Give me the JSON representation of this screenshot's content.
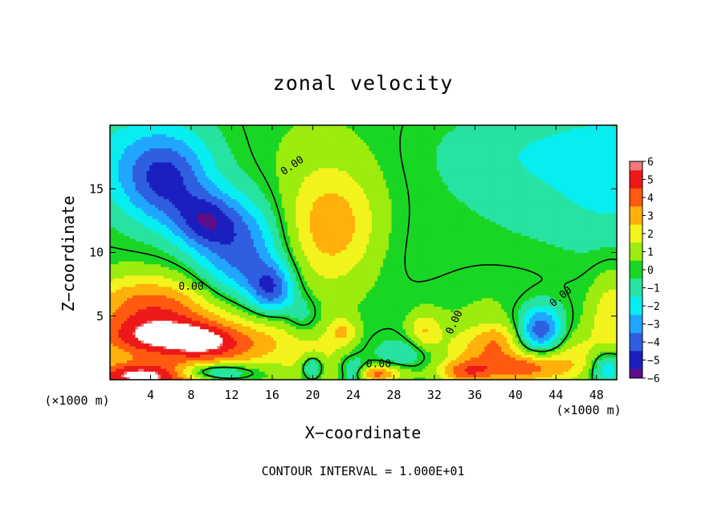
{
  "chart_data": {
    "type": "heatmap",
    "title": "zonal velocity",
    "xlabel": "X−coordinate",
    "ylabel": "Z−coordinate",
    "x_unit_label_left": "(×1000 m)",
    "x_unit_label_right": "(×1000 m)",
    "xlim": [
      0,
      50
    ],
    "ylim": [
      0,
      20
    ],
    "x_ticks": [
      4,
      8,
      12,
      16,
      20,
      24,
      28,
      32,
      36,
      40,
      44,
      48
    ],
    "y_ticks": [
      5,
      10,
      15
    ],
    "colorbar": {
      "range": [
        -6,
        6
      ],
      "tick_values": [
        6,
        5,
        4,
        3,
        2,
        1,
        0,
        -1,
        -2,
        -3,
        -4,
        -5,
        -6
      ],
      "tick_labels": [
        "6",
        "5",
        "4",
        "3",
        "2",
        "1",
        "0",
        "−1",
        "−2",
        "−3",
        "−4",
        "−5",
        "−6"
      ]
    },
    "contour_levels": [
      0
    ],
    "contour_labels": [
      "0.00",
      "0.00",
      "0.00",
      "0.00",
      "0.00"
    ],
    "contour_interval_text": "CONTOUR INTERVAL = 1.000E+01",
    "background_value": 0.1,
    "features": [
      {
        "x": 20,
        "y": 14,
        "sx": 7,
        "sy": 5,
        "amp": 0.9
      },
      {
        "x": 22,
        "y": 12,
        "sx": 3,
        "sy": 3,
        "amp": 2.4
      },
      {
        "x": 5.5,
        "y": 15.5,
        "sx": 3,
        "sy": 2.5,
        "amp": -3.8
      },
      {
        "x": 9.5,
        "y": 12.5,
        "sx": 2.2,
        "sy": 1.6,
        "amp": -3.8
      },
      {
        "x": 3,
        "y": 17.5,
        "sx": 6,
        "sy": 3,
        "amp": -1.8
      },
      {
        "x": 12,
        "y": 9,
        "sx": 3,
        "sy": 3,
        "amp": -2.6
      },
      {
        "x": 16,
        "y": 7,
        "sx": 1.6,
        "sy": 1.5,
        "amp": -4.3
      },
      {
        "x": 14,
        "y": 11,
        "sx": 2.5,
        "sy": 3,
        "amp": -2.2
      },
      {
        "x": 42,
        "y": 18,
        "sx": 7,
        "sy": 2.5,
        "amp": -1.4
      },
      {
        "x": 42,
        "y": 13,
        "sx": 6,
        "sy": 3,
        "amp": -0.6
      },
      {
        "x": 50,
        "y": 16,
        "sx": 4,
        "sy": 4,
        "amp": -1.6
      },
      {
        "x": 30,
        "y": 10,
        "sx": 4,
        "sy": 6,
        "amp": -0.5
      },
      {
        "x": 6,
        "y": 5,
        "sx": 6,
        "sy": 2,
        "amp": 3.2
      },
      {
        "x": 4,
        "y": 3.2,
        "sx": 4,
        "sy": 1.2,
        "amp": 3.5
      },
      {
        "x": 9,
        "y": 3,
        "sx": 2.5,
        "sy": 1,
        "amp": 2.5
      },
      {
        "x": 12,
        "y": 2.5,
        "sx": 3,
        "sy": 1.2,
        "amp": 1.8
      },
      {
        "x": 3,
        "y": 6.5,
        "sx": 4,
        "sy": 1.5,
        "amp": 1.4
      },
      {
        "x": 16,
        "y": 3.5,
        "sx": 3,
        "sy": 2,
        "amp": 1.5
      },
      {
        "x": 4,
        "y": 0.3,
        "sx": 5,
        "sy": 0.8,
        "amp": 6.0
      },
      {
        "x": 10,
        "y": 0.6,
        "sx": 3,
        "sy": 0.5,
        "amp": -4.5
      },
      {
        "x": 20.5,
        "y": 1.5,
        "sx": 2,
        "sy": 1.6,
        "amp": 1.6
      },
      {
        "x": 23,
        "y": 3.8,
        "sx": 1,
        "sy": 0.8,
        "amp": 2.2
      },
      {
        "x": 19,
        "y": 5,
        "sx": 1.2,
        "sy": 1.2,
        "amp": -1.8
      },
      {
        "x": 20,
        "y": 1,
        "sx": 0.8,
        "sy": 0.7,
        "amp": -3.5
      },
      {
        "x": 24,
        "y": 0.6,
        "sx": 1,
        "sy": 0.7,
        "amp": -3.5
      },
      {
        "x": 26,
        "y": 0.5,
        "sx": 2,
        "sy": 0.5,
        "amp": 4.0
      },
      {
        "x": 31,
        "y": 3.8,
        "sx": 1.2,
        "sy": 1.1,
        "amp": 2.4
      },
      {
        "x": 29,
        "y": 2.2,
        "sx": 2,
        "sy": 0.8,
        "amp": -1.5
      },
      {
        "x": 36,
        "y": 2.5,
        "sx": 2.5,
        "sy": 1.3,
        "amp": 2.2
      },
      {
        "x": 35,
        "y": 0.6,
        "sx": 2,
        "sy": 0.7,
        "amp": 3.2
      },
      {
        "x": 42.5,
        "y": 4,
        "sx": 1.6,
        "sy": 1.4,
        "amp": -4.5
      },
      {
        "x": 38.5,
        "y": 3.2,
        "sx": 1.5,
        "sy": 1,
        "amp": 1.8
      },
      {
        "x": 41,
        "y": 1,
        "sx": 3,
        "sy": 0.9,
        "amp": 4.0
      },
      {
        "x": 46,
        "y": 2,
        "sx": 2,
        "sy": 1.5,
        "amp": 1.6
      },
      {
        "x": 49.5,
        "y": 5,
        "sx": 1.5,
        "sy": 2.5,
        "amp": 2.2
      },
      {
        "x": 49,
        "y": 1,
        "sx": 1.2,
        "sy": 1,
        "amp": -3.0
      },
      {
        "x": 36,
        "y": 6,
        "sx": 6,
        "sy": 2,
        "amp": 0.5
      }
    ]
  }
}
